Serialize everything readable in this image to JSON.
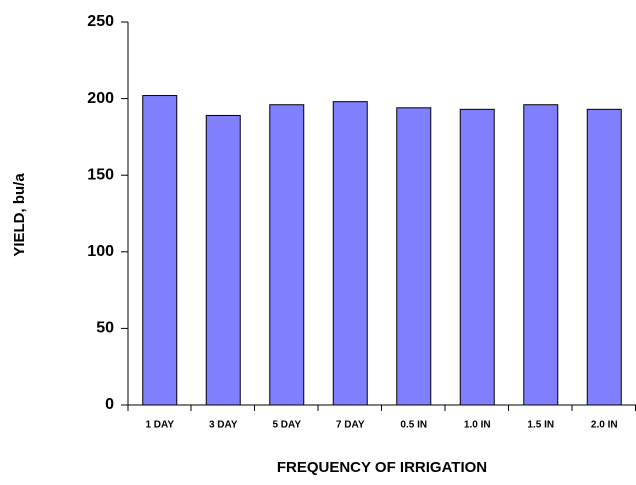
{
  "chart_data": {
    "type": "bar",
    "x_label": "FREQUENCY OF IRRIGATION",
    "y_label": "YIELD, bu/a",
    "categories": [
      "1 DAY",
      "3 DAY",
      "5 DAY",
      "7 DAY",
      "0.5 IN",
      "1.0 IN",
      "1.5 IN",
      "2.0 IN"
    ],
    "values": [
      202,
      189,
      196,
      198,
      194,
      193,
      196,
      193
    ],
    "color": "#8080ff",
    "ylim": [
      0,
      250
    ],
    "yticks": [
      0,
      50,
      100,
      150,
      200,
      250
    ],
    "grid": false
  }
}
